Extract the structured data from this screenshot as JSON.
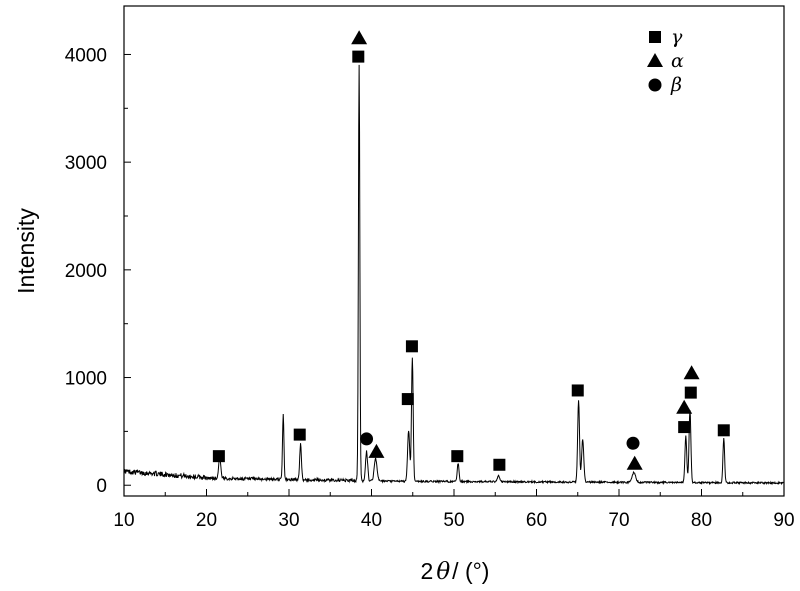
{
  "chart_data": {
    "type": "line",
    "title": "",
    "xlabel_prefix": "2",
    "xlabel_theta": "θ",
    "xlabel_unit": "/ (°)",
    "ylabel": "Intensity",
    "xlim": [
      10,
      90
    ],
    "ylim": [
      -100,
      4450
    ],
    "xticks": [
      "10",
      "20",
      "30",
      "40",
      "50",
      "60",
      "70",
      "80",
      "90"
    ],
    "yticks": [
      "0",
      "1000",
      "2000",
      "3000",
      "4000"
    ],
    "grid": false,
    "legend_position": "top-right",
    "legend": [
      {
        "marker": "square",
        "label": "γ"
      },
      {
        "marker": "triangle",
        "label": "α"
      },
      {
        "marker": "circle",
        "label": "β"
      }
    ],
    "peaks": [
      {
        "x": 21.6,
        "y": 190,
        "w": 0.15
      },
      {
        "x": 29.3,
        "y": 610,
        "w": 0.1
      },
      {
        "x": 31.4,
        "y": 330,
        "w": 0.12
      },
      {
        "x": 38.5,
        "y": 3870,
        "w": 0.1
      },
      {
        "x": 39.4,
        "y": 270,
        "w": 0.15
      },
      {
        "x": 40.5,
        "y": 210,
        "w": 0.2
      },
      {
        "x": 44.5,
        "y": 470,
        "w": 0.15
      },
      {
        "x": 44.95,
        "y": 1150,
        "w": 0.12
      },
      {
        "x": 50.5,
        "y": 170,
        "w": 0.12
      },
      {
        "x": 55.4,
        "y": 60,
        "w": 0.15
      },
      {
        "x": 65.1,
        "y": 760,
        "w": 0.13
      },
      {
        "x": 65.6,
        "y": 400,
        "w": 0.15
      },
      {
        "x": 71.8,
        "y": 90,
        "w": 0.25
      },
      {
        "x": 78.1,
        "y": 430,
        "w": 0.13
      },
      {
        "x": 78.6,
        "y": 680,
        "w": 0.13
      },
      {
        "x": 82.7,
        "y": 410,
        "w": 0.12
      }
    ],
    "markers": [
      {
        "shape": "square",
        "x": 21.5,
        "y": 270
      },
      {
        "shape": "square",
        "x": 31.3,
        "y": 470
      },
      {
        "shape": "triangle",
        "x": 38.5,
        "y": 4150
      },
      {
        "shape": "square",
        "x": 38.4,
        "y": 3980
      },
      {
        "shape": "circle",
        "x": 39.4,
        "y": 430
      },
      {
        "shape": "triangle",
        "x": 40.6,
        "y": 310
      },
      {
        "shape": "square",
        "x": 44.4,
        "y": 800
      },
      {
        "shape": "square",
        "x": 44.9,
        "y": 1290
      },
      {
        "shape": "square",
        "x": 50.4,
        "y": 270
      },
      {
        "shape": "square",
        "x": 55.5,
        "y": 190
      },
      {
        "shape": "square",
        "x": 65.0,
        "y": 880
      },
      {
        "shape": "circle",
        "x": 71.7,
        "y": 390
      },
      {
        "shape": "triangle",
        "x": 71.9,
        "y": 200
      },
      {
        "shape": "triangle",
        "x": 77.9,
        "y": 720
      },
      {
        "shape": "square",
        "x": 77.9,
        "y": 540
      },
      {
        "shape": "triangle",
        "x": 78.8,
        "y": 1040
      },
      {
        "shape": "square",
        "x": 78.7,
        "y": 860
      },
      {
        "shape": "square",
        "x": 82.7,
        "y": 510
      }
    ]
  }
}
